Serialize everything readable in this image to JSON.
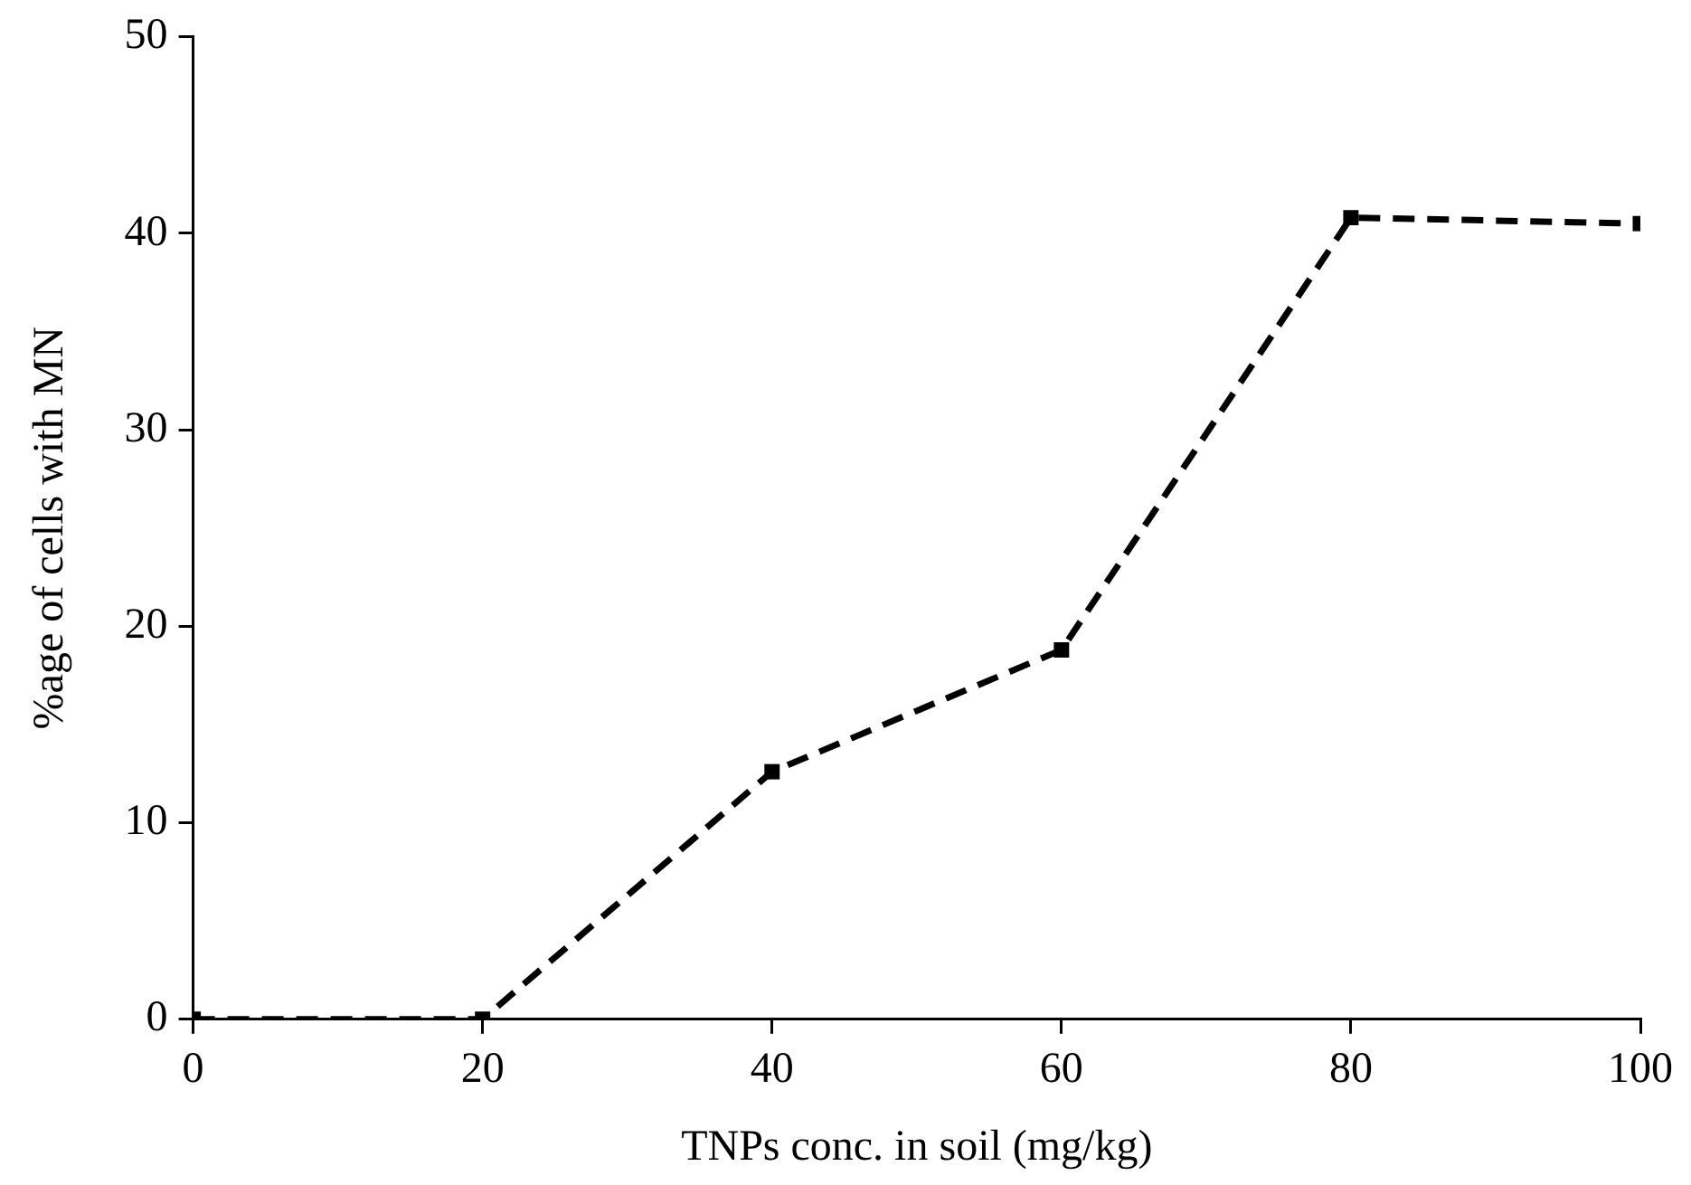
{
  "chart_data": {
    "type": "line",
    "xlabel": "TNPs conc. in soil (mg/kg)",
    "ylabel": "%age of cells with MN",
    "x": [
      0,
      20,
      40,
      60,
      80,
      100
    ],
    "series": [
      {
        "color": "#000000",
        "values": [
          0,
          0,
          12.6,
          18.8,
          40.8,
          40.5
        ]
      }
    ],
    "xlim": [
      0,
      100
    ],
    "xticks": [
      0,
      20,
      40,
      60,
      80,
      100
    ],
    "ylim": [
      0,
      50
    ],
    "yticks": [
      0,
      10,
      20,
      30,
      40,
      50
    ],
    "grid": false,
    "legend": false,
    "marker": "square",
    "line_style": "dashed"
  }
}
